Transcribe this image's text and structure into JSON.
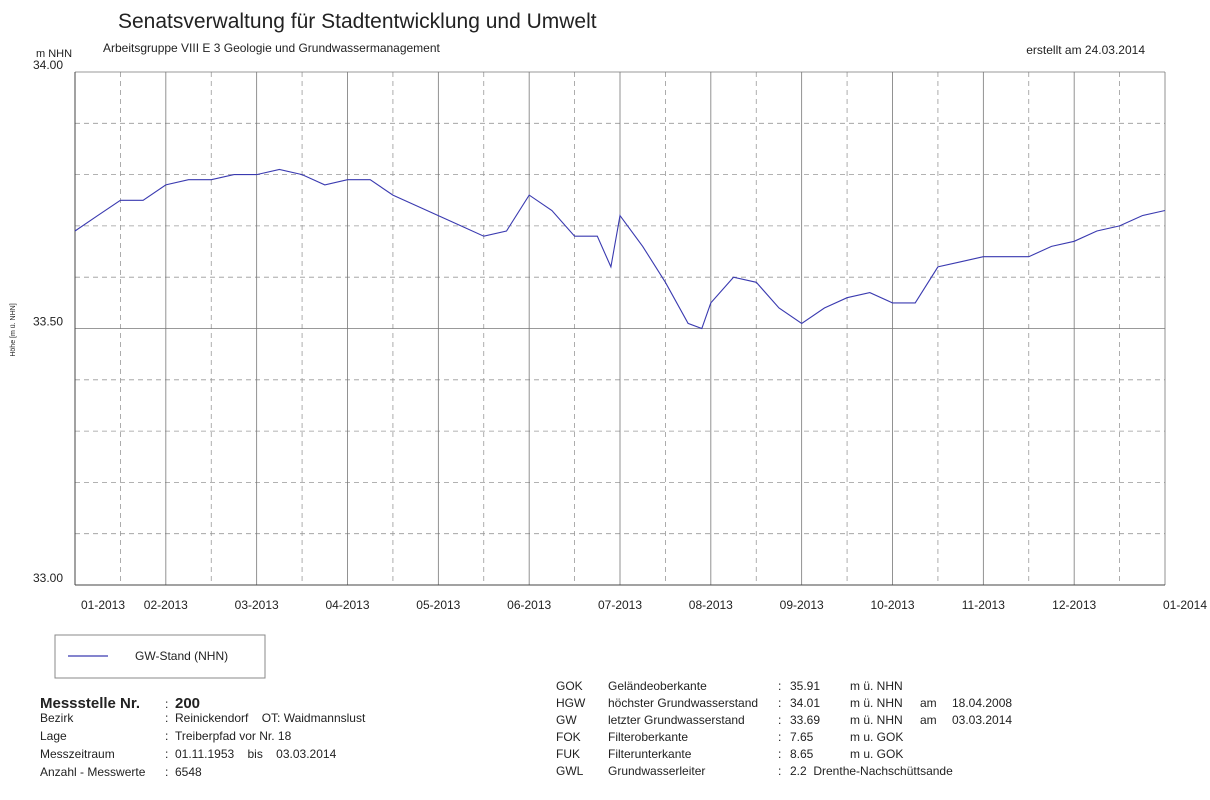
{
  "chart_data": {
    "type": "line",
    "title": "Senatsverwaltung für Stadtentwicklung und Umwelt",
    "subtitle": "Arbeitsgruppe VIII E 3 Geologie und Grundwassermanagement",
    "note": "erstellt am 24.03.2014",
    "y_unit": "m NHN",
    "ylabel": "Höhe [m ü. NHN]",
    "xlim": [
      0,
      12
    ],
    "xticks": [
      {
        "value": 0,
        "label": "01-2013"
      },
      {
        "value": 1,
        "label": "02-2013"
      },
      {
        "value": 2,
        "label": "03-2013"
      },
      {
        "value": 3,
        "label": "04-2013"
      },
      {
        "value": 4,
        "label": "05-2013"
      },
      {
        "value": 5,
        "label": "06-2013"
      },
      {
        "value": 6,
        "label": "07-2013"
      },
      {
        "value": 7,
        "label": "08-2013"
      },
      {
        "value": 8,
        "label": "09-2013"
      },
      {
        "value": 9,
        "label": "10-2013"
      },
      {
        "value": 10,
        "label": "11-2013"
      },
      {
        "value": 11,
        "label": "12-2013"
      },
      {
        "value": 12,
        "label": "01-2014"
      }
    ],
    "xgrid_minor": [
      0.5,
      1.5,
      2.5,
      3.5,
      4.5,
      5.5,
      6.5,
      7.5,
      8.5,
      9.5,
      10.5,
      11.5
    ],
    "ylim": [
      33,
      34
    ],
    "yticks": [
      {
        "value": 33,
        "label": "33.00"
      },
      {
        "value": 33.5,
        "label": "33.50"
      },
      {
        "value": 34,
        "label": "34.00"
      }
    ],
    "ygrid_minor": [
      33.1,
      33.2,
      33.3,
      33.4,
      33.6,
      33.7,
      33.8,
      33.9
    ],
    "grid": true,
    "series": [
      {
        "name": "GW-Stand (NHN)",
        "color": "#3a3ab0",
        "x": [
          0,
          0.25,
          0.5,
          0.75,
          1,
          1.25,
          1.5,
          1.75,
          2,
          2.25,
          2.5,
          2.75,
          3,
          3.25,
          3.5,
          3.75,
          4,
          4.25,
          4.5,
          4.75,
          5,
          5.25,
          5.5,
          5.75,
          5.9,
          6,
          6.25,
          6.5,
          6.75,
          6.9,
          7,
          7.25,
          7.5,
          7.75,
          8,
          8.25,
          8.5,
          8.75,
          9,
          9.25,
          9.5,
          9.75,
          10,
          10.25,
          10.5,
          10.75,
          11,
          11.25,
          11.5,
          11.75,
          12
        ],
        "values": [
          33.69,
          33.72,
          33.75,
          33.75,
          33.78,
          33.79,
          33.79,
          33.8,
          33.8,
          33.81,
          33.8,
          33.78,
          33.79,
          33.79,
          33.76,
          33.74,
          33.72,
          33.7,
          33.68,
          33.69,
          33.76,
          33.73,
          33.68,
          33.68,
          33.62,
          33.72,
          33.66,
          33.59,
          33.51,
          33.5,
          33.55,
          33.6,
          33.59,
          33.54,
          33.51,
          33.54,
          33.56,
          33.57,
          33.55,
          33.55,
          33.62,
          33.63,
          33.64,
          33.64,
          33.64,
          33.66,
          33.67,
          33.69,
          33.7,
          33.72,
          33.73
        ]
      }
    ]
  },
  "info": {
    "sep": ":",
    "left": [
      [
        "Messstelle Nr.",
        "200"
      ],
      [
        "Bezirk",
        "Reinickendorf    OT: Waidmannslust"
      ],
      [
        "Lage",
        "Treiberpfad vor Nr. 18"
      ],
      [
        "Messzeitraum",
        "01.11.1953    bis    03.03.2014"
      ],
      [
        "Anzahl - Messwerte",
        "6548"
      ]
    ],
    "right": [
      [
        "GOK",
        "Geländeoberkante",
        "35.91",
        "m ü. NHN"
      ],
      [
        "HGW",
        "höchster Grundwasserstand",
        "34.01",
        "m ü. NHN",
        "am",
        "18.04.2008"
      ],
      [
        "GW",
        "letzter Grundwasserstand",
        "33.69",
        "m ü. NHN",
        "am",
        "03.03.2014"
      ],
      [
        "FOK",
        "Filteroberkante",
        "7.65",
        "m u. GOK"
      ],
      [
        "FUK",
        "Filterunterkante",
        "8.65",
        "m u. GOK"
      ],
      [
        "GWL",
        "Grundwasserleiter",
        "2.2  Drenthe-Nachschüttsande"
      ]
    ]
  }
}
